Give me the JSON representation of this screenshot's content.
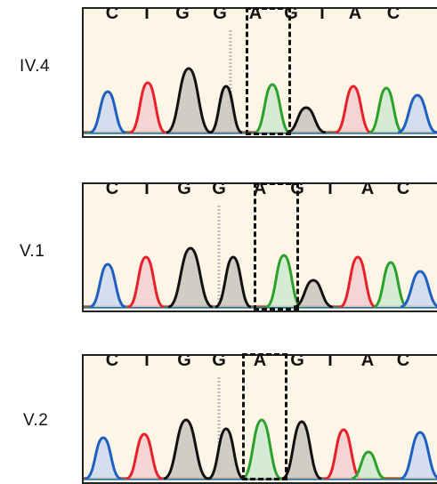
{
  "panels": [
    {
      "id": "p1",
      "sample": "IV.4",
      "bases": [
        "C",
        "T",
        "G",
        "G",
        "A",
        "G",
        "T",
        "A",
        "C"
      ]
    },
    {
      "id": "p2",
      "sample": "V.1",
      "bases": [
        "C",
        "T",
        "G",
        "G",
        "A",
        "G",
        "T",
        "A",
        "C"
      ]
    },
    {
      "id": "p3",
      "sample": "V.2",
      "bases": [
        "C",
        "T",
        "G",
        "G",
        "A",
        "G",
        "T",
        "A",
        "C"
      ]
    }
  ],
  "base_colors": {
    "A": "#2ca02c",
    "C": "#1f5fbf",
    "G": "#111111",
    "T": "#e8202a"
  },
  "peak_fills": {
    "A": "#cfe9cf",
    "C": "#cdd9ee",
    "G": "#c9c4bd",
    "T": "#f3cfcf"
  },
  "background_color": "#fdf6e6",
  "highlighted_base": "A"
}
